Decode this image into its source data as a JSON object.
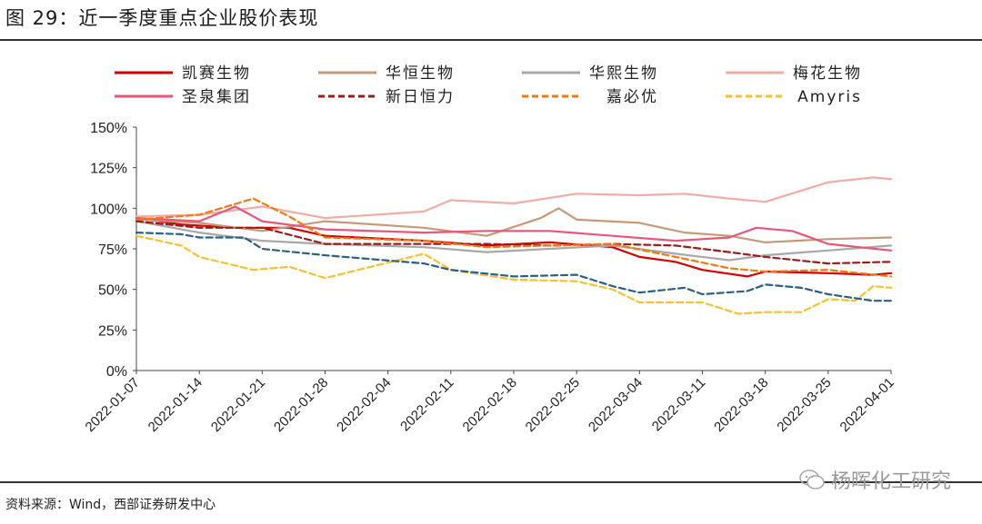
{
  "figure_title": "图 29：近一季度重点企业股价表现",
  "source_note": "资料来源：Wind，西部证券研发中心",
  "watermark": "杨晖化工研究",
  "chart_data": {
    "type": "line",
    "title": "",
    "xlabel": "",
    "ylabel": "",
    "ylim": [
      0,
      150
    ],
    "yticks": [
      "0%",
      "25%",
      "50%",
      "75%",
      "100%",
      "125%",
      "150%"
    ],
    "xticks": [
      "2022-01-07",
      "2022-01-14",
      "2022-01-21",
      "2022-01-28",
      "2022-02-04",
      "2022-02-11",
      "2022-02-18",
      "2022-02-25",
      "2022-03-04",
      "2022-03-11",
      "2022-03-18",
      "2022-03-25",
      "2022-04-01"
    ],
    "x_range": [
      "2022-01-07",
      "2022-04-01"
    ],
    "grid": false,
    "legend_position": "top",
    "series": [
      {
        "name": "凯赛生物",
        "color": "#d40000",
        "dash": "solid",
        "x": [
          "2022-01-07",
          "2022-01-12",
          "2022-01-18",
          "2022-01-24",
          "2022-01-28",
          "2022-02-08",
          "2022-02-15",
          "2022-02-22",
          "2022-03-01",
          "2022-03-04",
          "2022-03-08",
          "2022-03-11",
          "2022-03-16",
          "2022-03-18",
          "2022-03-25",
          "2022-03-30",
          "2022-04-01"
        ],
        "y": [
          94,
          90,
          88,
          88,
          83,
          80,
          77,
          79,
          76,
          70,
          67,
          62,
          58,
          61,
          60,
          59,
          60
        ]
      },
      {
        "name": "华恒生物",
        "color": "#c69a78",
        "dash": "solid",
        "x": [
          "2022-01-07",
          "2022-01-14",
          "2022-01-21",
          "2022-01-28",
          "2022-02-08",
          "2022-02-15",
          "2022-02-21",
          "2022-02-23",
          "2022-02-25",
          "2022-03-04",
          "2022-03-09",
          "2022-03-14",
          "2022-03-18",
          "2022-03-25",
          "2022-04-01"
        ],
        "y": [
          93,
          91,
          86,
          92,
          88,
          83,
          94,
          100,
          93,
          91,
          85,
          83,
          79,
          81,
          82
        ]
      },
      {
        "name": "华熙生物",
        "color": "#a8a8a8",
        "dash": "solid",
        "x": [
          "2022-01-07",
          "2022-01-14",
          "2022-01-21",
          "2022-01-28",
          "2022-02-08",
          "2022-02-15",
          "2022-02-22",
          "2022-03-01",
          "2022-03-08",
          "2022-03-14",
          "2022-03-18",
          "2022-03-25",
          "2022-04-01"
        ],
        "y": [
          92,
          85,
          80,
          78,
          76,
          73,
          75,
          77,
          72,
          68,
          71,
          74,
          77
        ]
      },
      {
        "name": "梅花生物",
        "color": "#f3aba6",
        "dash": "solid",
        "x": [
          "2022-01-07",
          "2022-01-14",
          "2022-01-21",
          "2022-01-28",
          "2022-02-08",
          "2022-02-11",
          "2022-02-18",
          "2022-02-25",
          "2022-03-04",
          "2022-03-09",
          "2022-03-14",
          "2022-03-18",
          "2022-03-25",
          "2022-03-30",
          "2022-04-01"
        ],
        "y": [
          95,
          96,
          101,
          94,
          98,
          105,
          103,
          109,
          108,
          109,
          106,
          104,
          116,
          119,
          118
        ]
      },
      {
        "name": "圣泉集团",
        "color": "#e8567a",
        "dash": "solid",
        "x": [
          "2022-01-07",
          "2022-01-14",
          "2022-01-18",
          "2022-01-21",
          "2022-01-28",
          "2022-02-08",
          "2022-02-15",
          "2022-02-22",
          "2022-03-01",
          "2022-03-08",
          "2022-03-14",
          "2022-03-17",
          "2022-03-21",
          "2022-03-25",
          "2022-04-01"
        ],
        "y": [
          94,
          92,
          101,
          92,
          87,
          85,
          86,
          86,
          83,
          80,
          82,
          88,
          86,
          78,
          74
        ]
      },
      {
        "name": "新日恒力",
        "color": "#9e1b1b",
        "dash": "dashed",
        "x": [
          "2022-01-07",
          "2022-01-14",
          "2022-01-21",
          "2022-01-28",
          "2022-02-08",
          "2022-02-15",
          "2022-02-22",
          "2022-03-01",
          "2022-03-08",
          "2022-03-14",
          "2022-03-18",
          "2022-03-25",
          "2022-04-01"
        ],
        "y": [
          92,
          88,
          88,
          78,
          78,
          78,
          77,
          78,
          77,
          73,
          70,
          66,
          67
        ]
      },
      {
        "name": "嘉必优",
        "color": "#f07a10",
        "dash": "dashed",
        "x": [
          "2022-01-07",
          "2022-01-14",
          "2022-01-20",
          "2022-01-24",
          "2022-01-28",
          "2022-02-08",
          "2022-02-15",
          "2022-02-22",
          "2022-03-01",
          "2022-03-08",
          "2022-03-14",
          "2022-03-18",
          "2022-03-25",
          "2022-04-01"
        ],
        "y": [
          93,
          96,
          106,
          95,
          82,
          80,
          76,
          77,
          78,
          70,
          63,
          61,
          62,
          58
        ]
      },
      {
        "name": "Amyris",
        "color": "#f7c12d",
        "dash": "dashed",
        "x": [
          "2022-01-07",
          "2022-01-12",
          "2022-01-14",
          "2022-01-20",
          "2022-01-24",
          "2022-01-28",
          "2022-02-08",
          "2022-02-11",
          "2022-02-18",
          "2022-02-25",
          "2022-03-01",
          "2022-03-04",
          "2022-03-11",
          "2022-03-15",
          "2022-03-18",
          "2022-03-22",
          "2022-03-25",
          "2022-03-28",
          "2022-03-30",
          "2022-04-01"
        ],
        "y": [
          83,
          77,
          70,
          62,
          64,
          57,
          72,
          62,
          56,
          55,
          50,
          42,
          42,
          35,
          36,
          36,
          44,
          43,
          52,
          51
        ]
      },
      {
        "name": "",
        "color": "#2a5f86",
        "dash": "dashed",
        "x": [
          "2022-01-07",
          "2022-01-12",
          "2022-01-14",
          "2022-01-19",
          "2022-01-21",
          "2022-01-28",
          "2022-02-08",
          "2022-02-11",
          "2022-02-18",
          "2022-02-25",
          "2022-03-01",
          "2022-03-04",
          "2022-03-09",
          "2022-03-11",
          "2022-03-16",
          "2022-03-18",
          "2022-03-22",
          "2022-03-25",
          "2022-03-30",
          "2022-04-01"
        ],
        "y": [
          85,
          84,
          82,
          82,
          75,
          71,
          66,
          62,
          58,
          59,
          52,
          48,
          51,
          47,
          49,
          53,
          51,
          47,
          43,
          43
        ]
      }
    ]
  }
}
